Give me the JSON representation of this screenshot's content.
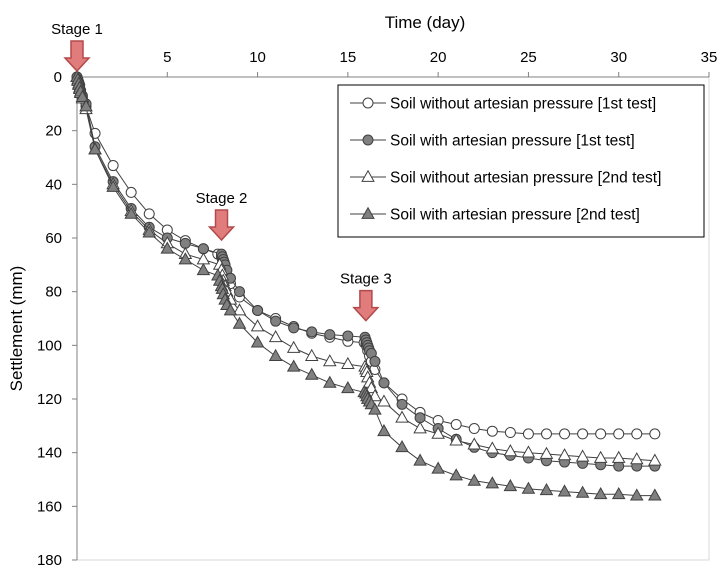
{
  "chart_data": {
    "type": "scatter",
    "title": "",
    "xlabel": "Time (day)",
    "ylabel": "Settlement (mm)",
    "xlim": [
      0,
      35
    ],
    "ylim": [
      0,
      180
    ],
    "y_inverted": true,
    "x_axis_position": "top",
    "xticks": [
      0,
      5,
      10,
      15,
      20,
      25,
      30,
      35
    ],
    "yticks": [
      0,
      20,
      40,
      60,
      80,
      100,
      120,
      140,
      160,
      180
    ],
    "grid": false,
    "legend_position": "top-right",
    "colors": {
      "marker_dark": "#808080",
      "marker_light": "#ffffff",
      "line": "#404040",
      "arrow_fill": "#e07c7c",
      "arrow_stroke": "#b34a4a"
    },
    "annotations": [
      {
        "id": "stage1",
        "label": "Stage 1",
        "x": 0,
        "y": 0
      },
      {
        "id": "stage2",
        "label": "Stage 2",
        "x": 8,
        "y": 63
      },
      {
        "id": "stage3",
        "label": "Stage 3",
        "x": 16,
        "y": 93
      }
    ],
    "series": [
      {
        "name": "Soil without artesian pressure [1st test]",
        "marker": "circle",
        "fill": "white",
        "x": [
          0,
          0.05,
          0.1,
          0.15,
          0.2,
          0.3,
          0.5,
          1,
          2,
          3,
          4,
          5,
          6,
          7,
          7.8,
          8,
          8.05,
          8.1,
          8.2,
          8.3,
          8.5,
          9,
          10,
          11,
          12,
          13,
          14,
          15,
          15.9,
          16,
          16.05,
          16.1,
          16.2,
          16.3,
          16.5,
          17,
          18,
          19,
          20,
          21,
          22,
          23,
          24,
          25,
          26,
          27,
          28,
          29,
          30,
          31,
          32
        ],
        "y": [
          0,
          1.5,
          3,
          5,
          6.5,
          8,
          11,
          21,
          33,
          43,
          51,
          57,
          61,
          64,
          66,
          67,
          68,
          70,
          72,
          74,
          77,
          82,
          87,
          90,
          93,
          95.5,
          97,
          98.5,
          99,
          99.5,
          100.5,
          102,
          104,
          106,
          109,
          114,
          120,
          125,
          128,
          129.5,
          131,
          132,
          132.5,
          133,
          133,
          133,
          133,
          133,
          133,
          133,
          133
        ]
      },
      {
        "name": "Soil with artesian pressure [1st test]",
        "marker": "circle",
        "fill": "dark",
        "x": [
          0,
          0.05,
          0.1,
          0.15,
          0.2,
          0.3,
          0.5,
          1,
          2,
          3,
          4,
          5,
          6,
          7,
          8,
          8.05,
          8.1,
          8.15,
          8.2,
          8.3,
          8.5,
          9,
          10,
          11,
          12,
          13,
          14,
          15,
          15.95,
          16,
          16.05,
          16.1,
          16.15,
          16.2,
          16.3,
          16.5,
          17,
          18,
          19,
          20,
          21,
          22,
          23,
          24,
          25,
          26,
          27,
          28,
          29,
          30,
          31,
          32
        ],
        "y": [
          0,
          1,
          2,
          3,
          5,
          7,
          10,
          26,
          39,
          49,
          56,
          60,
          62,
          64,
          66,
          67,
          68,
          69,
          70,
          72,
          75,
          80,
          87,
          91,
          93.5,
          95,
          96,
          96.5,
          97,
          98,
          99,
          100,
          101,
          102,
          103,
          106,
          114,
          122,
          127,
          131,
          135,
          138,
          140,
          141,
          142,
          143,
          143.5,
          144,
          144.5,
          145,
          145,
          145
        ]
      },
      {
        "name": "Soil without artesian pressure [2nd test]",
        "marker": "triangle",
        "fill": "white",
        "x": [
          0,
          0.05,
          0.1,
          0.15,
          0.2,
          0.3,
          0.5,
          1,
          2,
          3,
          4,
          5,
          6,
          7,
          7.9,
          8,
          8.05,
          8.1,
          8.2,
          8.3,
          8.5,
          9,
          10,
          11,
          12,
          13,
          14,
          15,
          15.95,
          16,
          16.05,
          16.1,
          16.2,
          16.3,
          16.5,
          17,
          18,
          19,
          20,
          21,
          22,
          23,
          24,
          25,
          26,
          27,
          28,
          29,
          30,
          31,
          32
        ],
        "y": [
          0,
          1.5,
          3,
          4.5,
          6,
          8,
          12,
          27,
          40,
          50,
          57,
          62,
          66,
          68,
          70,
          72,
          74,
          76,
          78,
          80,
          83,
          87,
          93,
          97,
          101,
          104,
          106,
          107,
          108,
          109,
          110,
          112,
          114,
          116,
          119,
          121,
          127,
          131,
          133,
          135.5,
          137,
          138.5,
          139.5,
          140,
          140.5,
          141,
          141.5,
          142,
          142,
          142.5,
          143
        ]
      },
      {
        "name": "Soil with artesian pressure [2nd test]",
        "marker": "triangle",
        "fill": "dark",
        "x": [
          0,
          0.05,
          0.1,
          0.15,
          0.2,
          0.3,
          0.5,
          1,
          2,
          3,
          4,
          5,
          6,
          7,
          7.8,
          7.9,
          8,
          8.05,
          8.1,
          8.2,
          8.3,
          8.5,
          9,
          10,
          11,
          12,
          13,
          14,
          15,
          15.9,
          16,
          16.05,
          16.1,
          16.2,
          16.3,
          16.5,
          17,
          18,
          19,
          20,
          21,
          22,
          23,
          24,
          25,
          26,
          27,
          28,
          29,
          30,
          31,
          32
        ],
        "y": [
          0,
          1,
          2.5,
          4,
          5.5,
          7.5,
          11,
          27,
          41,
          51,
          58,
          64,
          68,
          72,
          74,
          76,
          78,
          79,
          81,
          83,
          85,
          87,
          92,
          99,
          104,
          108,
          111,
          114,
          116,
          117.5,
          118,
          119,
          120,
          121,
          122,
          124,
          132,
          138,
          143,
          146,
          148.5,
          150.5,
          151.5,
          152.5,
          153.5,
          154,
          154.5,
          155,
          155.5,
          155.5,
          156,
          156
        ]
      }
    ]
  }
}
